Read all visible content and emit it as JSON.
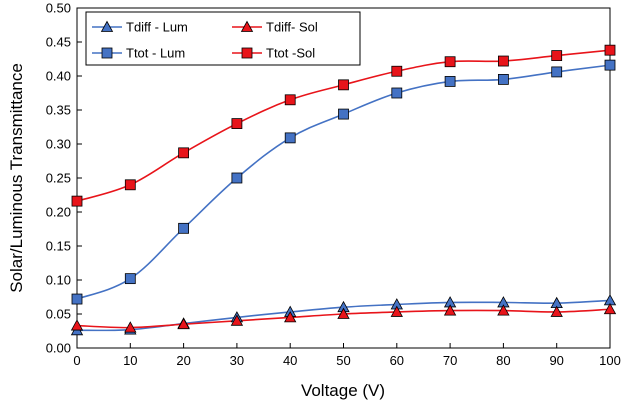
{
  "chart_data": {
    "type": "line",
    "title": "",
    "xlabel": "Voltage (V)",
    "ylabel": "Solar/Luminous Transmittance",
    "x": [
      0,
      10,
      20,
      30,
      40,
      50,
      60,
      70,
      80,
      90,
      100
    ],
    "xlim": [
      0,
      100
    ],
    "ylim": [
      0,
      0.5
    ],
    "xticks": [
      "0",
      "10",
      "20",
      "30",
      "40",
      "50",
      "60",
      "70",
      "80",
      "90",
      "100"
    ],
    "yticks": [
      "0.00",
      "0.05",
      "0.10",
      "0.15",
      "0.20",
      "0.25",
      "0.30",
      "0.35",
      "0.40",
      "0.45",
      "0.50"
    ],
    "grid": false,
    "legend_position": "top-left",
    "series": [
      {
        "name": "Tdiff - Lum",
        "marker": "triangle",
        "color": "#4472C4",
        "values": [
          0.026,
          0.027,
          0.036,
          0.045,
          0.053,
          0.06,
          0.064,
          0.067,
          0.067,
          0.066,
          0.07
        ]
      },
      {
        "name": "Tdiff- Sol",
        "marker": "triangle",
        "color": "#E8141A",
        "values": [
          0.033,
          0.03,
          0.035,
          0.04,
          0.045,
          0.05,
          0.053,
          0.055,
          0.055,
          0.053,
          0.057
        ]
      },
      {
        "name": "Ttot - Lum",
        "marker": "square",
        "color": "#4472C4",
        "values": [
          0.072,
          0.102,
          0.176,
          0.25,
          0.309,
          0.344,
          0.375,
          0.392,
          0.395,
          0.406,
          0.416
        ]
      },
      {
        "name": "Ttot -Sol",
        "marker": "square",
        "color": "#E8141A",
        "values": [
          0.216,
          0.24,
          0.287,
          0.33,
          0.365,
          0.387,
          0.407,
          0.421,
          0.422,
          0.43,
          0.438
        ]
      }
    ]
  }
}
